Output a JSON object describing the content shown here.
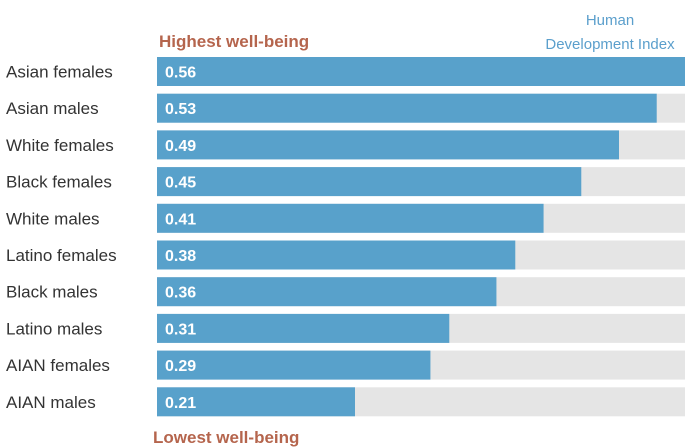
{
  "chart_data": {
    "type": "bar",
    "orientation": "horizontal",
    "legend_title": [
      "Human",
      "Development Index"
    ],
    "top_annotation": "Highest well-being",
    "bottom_annotation": "Lowest well-being",
    "categories": [
      "Asian females",
      "Asian males",
      "White females",
      "Black females",
      "White males",
      "Latino females",
      "Black males",
      "Latino males",
      "AIAN females",
      "AIAN males"
    ],
    "value_labels": [
      "0.56",
      "0.53",
      "0.49",
      "0.45",
      "0.41",
      "0.38",
      "0.36",
      "0.31",
      "0.29",
      "0.21"
    ],
    "series": [
      {
        "values": [
          0.56,
          0.53,
          0.49,
          0.45,
          0.41,
          0.38,
          0.36,
          0.31,
          0.29,
          0.21
        ]
      }
    ],
    "xlim": [
      0,
      0.56
    ],
    "grid": false,
    "colors": {
      "bar": "#58a1cb",
      "track": "#e5e5e5",
      "annotation": "#b5654d",
      "legend": "#5b9fcc",
      "label": "#333333"
    }
  }
}
